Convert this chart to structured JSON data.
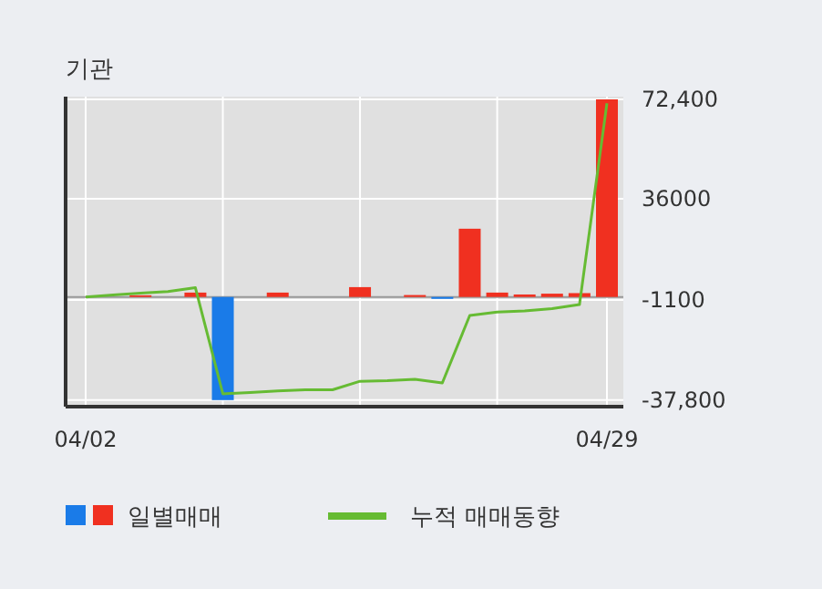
{
  "chart_data": {
    "type": "bar",
    "title": "기관",
    "categories": [
      "04/02",
      null,
      null,
      null,
      null,
      null,
      null,
      null,
      null,
      null,
      null,
      null,
      null,
      null,
      null,
      null,
      null,
      null,
      null,
      "04/29"
    ],
    "series": [
      {
        "name": "일별매매",
        "colors": [
          "#f03020",
          "#f03020",
          "#f03020",
          "#f03020",
          "#f03020",
          "#1a7be8",
          "#f03020",
          "#f03020",
          "#f03020",
          "#f03020",
          "#f03020",
          "#f03020",
          "#f03020",
          "#1a7be8",
          "#f03020",
          "#f03020",
          "#f03020",
          "#f03020",
          "#f03020",
          "#f03020"
        ],
        "values": [
          0,
          0,
          600,
          0,
          1600,
          -37800,
          0,
          1600,
          0,
          0,
          3600,
          0,
          700,
          -700,
          25000,
          1600,
          900,
          1200,
          1400,
          72400
        ]
      },
      {
        "name": "누적 매매동향",
        "type": "line",
        "color": "#66bb33",
        "values": [
          0,
          700,
          1400,
          2000,
          3400,
          -35500,
          -35000,
          -34400,
          -34000,
          -34000,
          -30900,
          -30700,
          -30200,
          -31500,
          -6800,
          -5500,
          -5100,
          -4300,
          -2800,
          71000
        ]
      }
    ],
    "ylim": [
      -40200,
      73400
    ],
    "yticks": [
      {
        "value": 72400,
        "label": "72,400"
      },
      36000,
      -1100,
      {
        "value": -37800,
        "label": "-37,800"
      }
    ],
    "grid": true,
    "legend": "bottom"
  }
}
